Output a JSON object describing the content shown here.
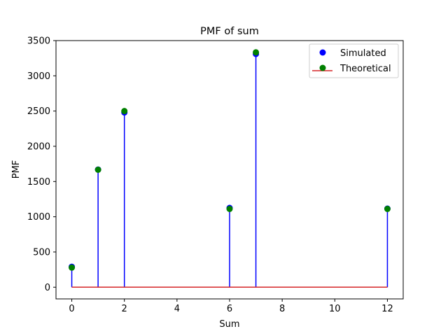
{
  "chart_data": {
    "type": "scatter",
    "subtype": "stem",
    "title": "PMF of sum",
    "xlabel": "Sum",
    "ylabel": "PMF",
    "xlim": [
      -0.6,
      12.6
    ],
    "ylim": [
      -166,
      3500
    ],
    "xticks": [
      0,
      2,
      4,
      6,
      8,
      10,
      12
    ],
    "xtick_labels": [
      "0",
      "2",
      "4",
      "6",
      "8",
      "10",
      "12"
    ],
    "yticks": [
      0,
      500,
      1000,
      1500,
      2000,
      2500,
      3000,
      3500
    ],
    "ytick_labels": [
      "0",
      "500",
      "1000",
      "1500",
      "2000",
      "2500",
      "3000",
      "3500"
    ],
    "grid": false,
    "legend_position": "top-right",
    "series": [
      {
        "name": "Simulated",
        "color": "#0000ff",
        "marker": "circle",
        "stem": true,
        "x": [
          0,
          1,
          2,
          6,
          7,
          12
        ],
        "y": [
          290,
          1670,
          2480,
          1125,
          3310,
          1115
        ]
      },
      {
        "name": "Theoretical",
        "color": "#008000",
        "marker": "circle",
        "stem": false,
        "x": [
          0,
          1,
          2,
          6,
          7,
          12
        ],
        "y": [
          278,
          1667,
          2500,
          1111,
          3333,
          1111
        ]
      }
    ],
    "baseline": {
      "label": "Theoretical",
      "y": 0,
      "x_range": [
        0,
        12
      ],
      "color": "#d62728"
    }
  }
}
